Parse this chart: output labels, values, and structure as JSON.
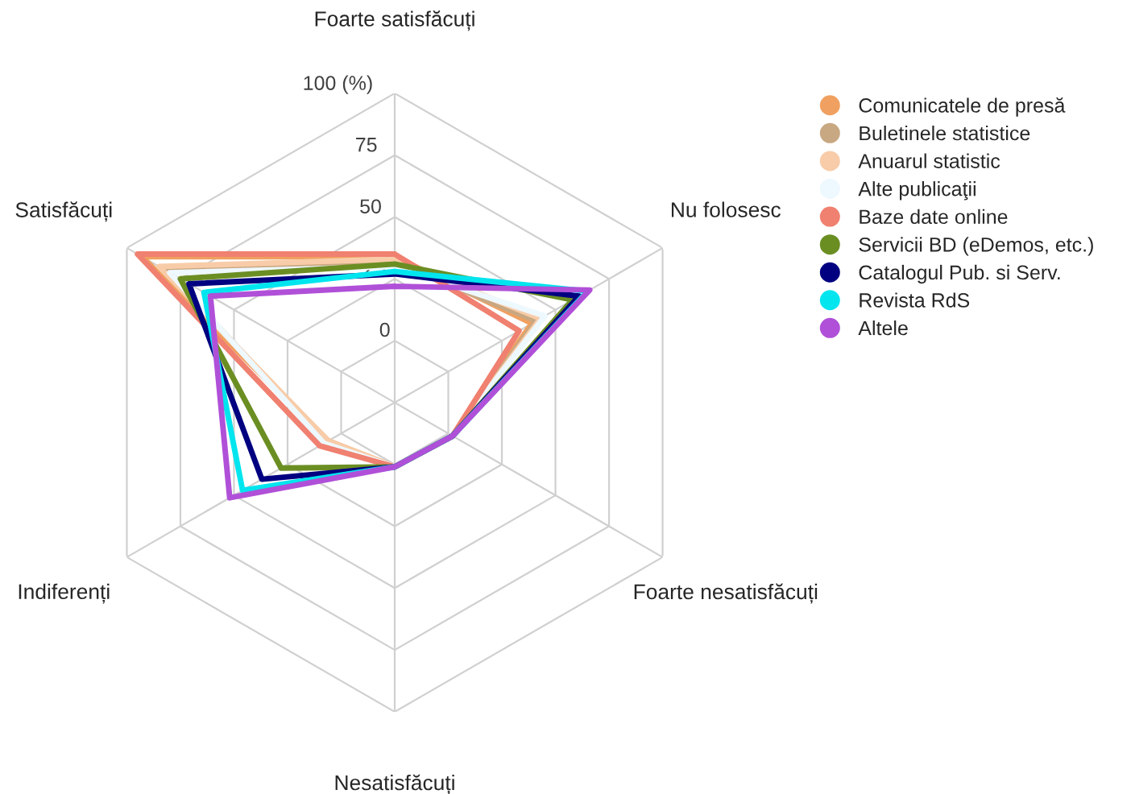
{
  "chart_data": {
    "type": "radar",
    "categories": [
      "Foarte satisfăcuți",
      "Nu folosesc",
      "Foarte nesatisfăcuți",
      "Nesatisfăcuți",
      "Indiferenți",
      "Satisfăcuți"
    ],
    "ylim": [
      -25,
      100
    ],
    "yticks": [
      0,
      25,
      50,
      75,
      {
        "value": 100,
        "label": "100 (%)"
      }
    ],
    "grid": true,
    "legend": "right",
    "marker": "none",
    "line_style": "solid",
    "series": [
      {
        "name": "Comunicatele de presă",
        "color": "#f0a060",
        "values": [
          34,
          39,
          2,
          1,
          6,
          93
        ]
      },
      {
        "name": "Buletinele statistice",
        "color": "#c8a882",
        "values": [
          32,
          41,
          2,
          1,
          7,
          82
        ]
      },
      {
        "name": "Anuarul statistic",
        "color": "#f8cca8",
        "values": [
          33,
          43,
          2,
          1,
          6,
          85
        ]
      },
      {
        "name": "Alte publicaţii",
        "color": "#eef8ff",
        "values": [
          30,
          45,
          2,
          1,
          8,
          80
        ]
      },
      {
        "name": "Baze date online",
        "color": "#f08070",
        "values": [
          35,
          33,
          2,
          1,
          10,
          95
        ]
      },
      {
        "name": "Servicii BD (eDemos, etc.)",
        "color": "#6b8e23",
        "values": [
          31,
          58,
          2,
          1,
          28,
          75
        ]
      },
      {
        "name": "Catalogul Pub. si Serv.",
        "color": "#000080",
        "values": [
          27,
          61,
          2,
          1,
          37,
          71
        ]
      },
      {
        "name": "Revista RdS",
        "color": "#00e5ee",
        "values": [
          28,
          65,
          2,
          1,
          46,
          64
        ]
      },
      {
        "name": "Altele",
        "color": "#b050d8",
        "values": [
          22,
          66,
          2,
          1,
          52,
          61
        ]
      }
    ]
  }
}
